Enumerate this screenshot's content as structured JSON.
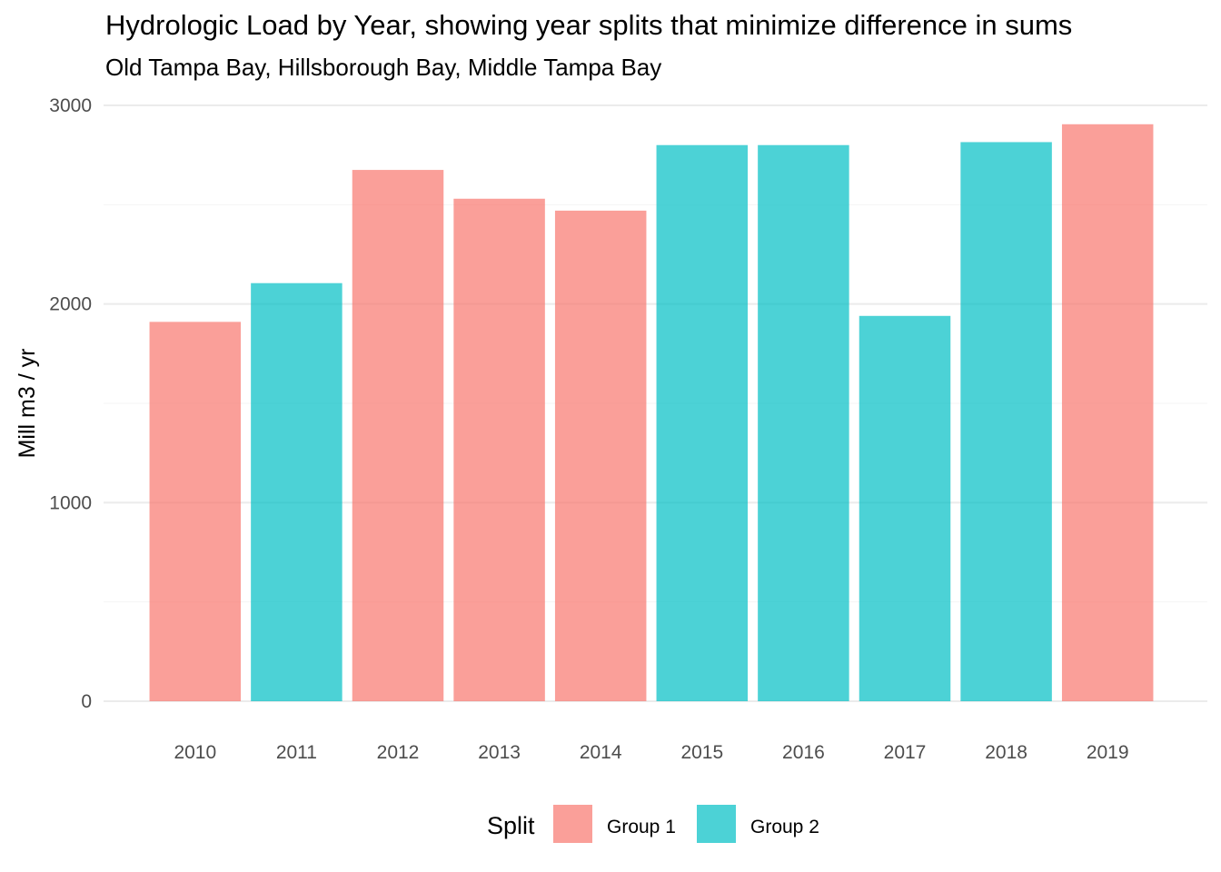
{
  "chart_data": {
    "type": "bar",
    "title": "Hydrologic Load by Year, showing year splits that minimize difference in sums",
    "subtitle": "Old Tampa Bay, Hillsborough Bay, Middle Tampa Bay",
    "xlabel": "",
    "ylabel": "Mill m3 / yr",
    "ylim": [
      0,
      3000
    ],
    "yticks": [
      0,
      1000,
      2000,
      3000
    ],
    "categories": [
      "2010",
      "2011",
      "2012",
      "2013",
      "2014",
      "2015",
      "2016",
      "2017",
      "2018",
      "2019"
    ],
    "values": [
      1910,
      2105,
      2675,
      2530,
      2470,
      2800,
      2800,
      1940,
      2815,
      2905
    ],
    "groups": [
      "Group 1",
      "Group 2",
      "Group 1",
      "Group 1",
      "Group 1",
      "Group 2",
      "Group 2",
      "Group 2",
      "Group 2",
      "Group 1"
    ],
    "grid": true,
    "legend": {
      "title": "Split",
      "position": "bottom",
      "entries": [
        {
          "name": "Group 1",
          "color": "#F8766D"
        },
        {
          "name": "Group 2",
          "color": "#00BFC4"
        }
      ]
    }
  }
}
